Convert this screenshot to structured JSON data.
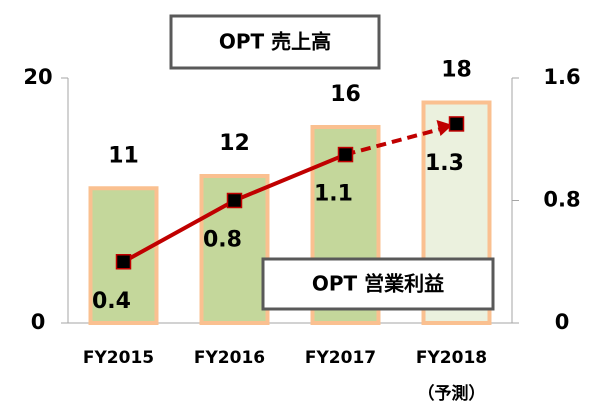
{
  "chart_data": {
    "type": "bar_line",
    "categories": [
      "FY2015",
      "FY2016",
      "FY2017",
      "FY2018"
    ],
    "category_note": "（予測）",
    "series": [
      {
        "name": "OPT 売上高",
        "type": "bar",
        "colors": [
          "#c4d79b",
          "#c4d79b",
          "#c4d79b",
          "#ebf1de"
        ],
        "edge_color": "#fac090",
        "values": [
          11,
          12,
          16,
          18
        ]
      },
      {
        "name": "OPT 営業利益",
        "type": "line",
        "axis": "y2",
        "color": "#c00000",
        "marker_color": "#000000",
        "segment_styles": [
          "solid",
          "solid",
          "dashed"
        ],
        "values": [
          0.4,
          0.8,
          1.1,
          1.3
        ]
      }
    ],
    "ylim": [
      0,
      20
    ],
    "yticks": [
      0,
      20
    ],
    "y2lim": [
      0,
      1.6
    ],
    "y2ticks": [
      0,
      0.8,
      1.6
    ]
  }
}
